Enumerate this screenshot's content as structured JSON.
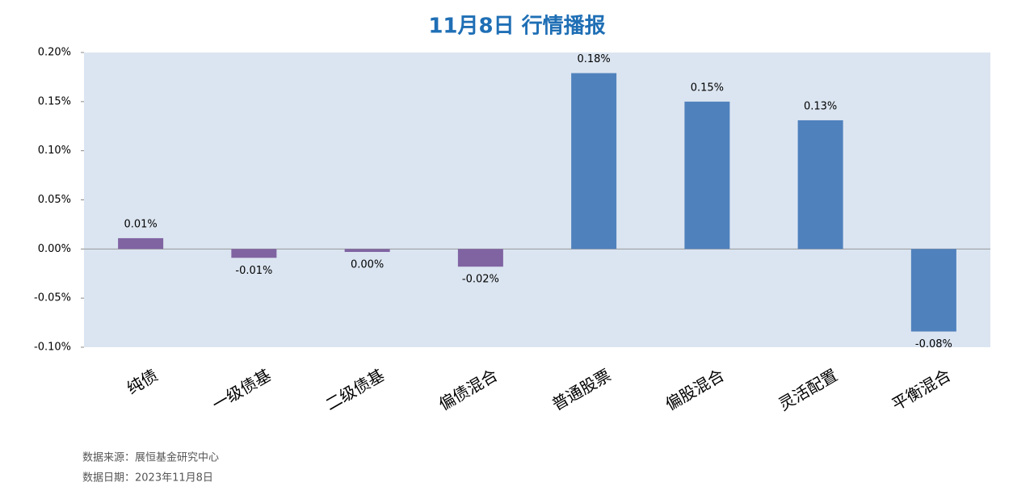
{
  "chart_data": {
    "type": "bar",
    "title": "11月8日 行情播报",
    "categories": [
      "纯债",
      "一级债基",
      "二级债基",
      "偏债混合",
      "普通股票",
      "偏股混合",
      "灵活配置",
      "平衡混合"
    ],
    "values": [
      0.011,
      -0.009,
      -0.003,
      -0.018,
      0.179,
      0.15,
      0.131,
      -0.084
    ],
    "value_labels": [
      "0.01%",
      "-0.01%",
      "0.00%",
      "-0.02%",
      "0.18%",
      "0.15%",
      "0.13%",
      "-0.08%"
    ],
    "colors": [
      "#8064a2",
      "#8064a2",
      "#8064a2",
      "#8064a2",
      "#4f81bd",
      "#4f81bd",
      "#4f81bd",
      "#4f81bd"
    ],
    "ylim": [
      -0.1,
      0.2
    ],
    "yticks": [
      {
        "value": -0.1,
        "label": "-0.10%"
      },
      {
        "value": -0.05,
        "label": "-0.05%"
      },
      {
        "value": 0,
        "label": "0.00%"
      },
      {
        "value": 0.05,
        "label": "0.05%"
      },
      {
        "value": 0.1,
        "label": "0.10%"
      },
      {
        "value": 0.15,
        "label": "0.15%"
      },
      {
        "value": 0.2,
        "label": "0.20%"
      }
    ],
    "plot_background": "#dbe5f1",
    "source": "数据来源：展恒基金研究中心",
    "date_note": "数据日期：2023年11月8日"
  }
}
